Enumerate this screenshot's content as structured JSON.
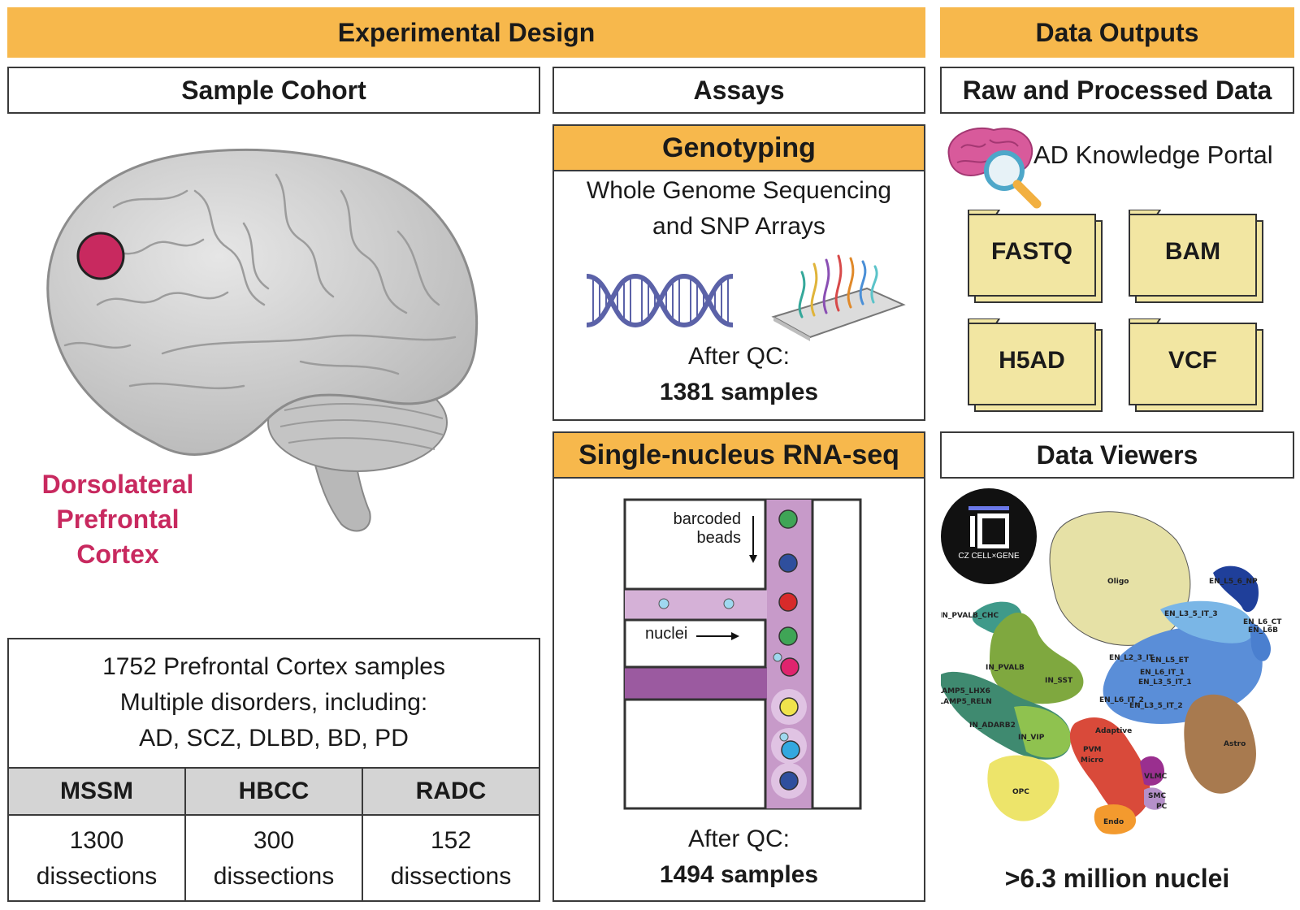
{
  "experimental_design": {
    "title": "Experimental Design",
    "sample_cohort": {
      "title": "Sample Cohort",
      "region_label": [
        "Dorsolateral",
        "Prefrontal",
        "Cortex"
      ],
      "summary_lines": [
        "1752 Prefrontal Cortex samples",
        "Multiple disorders, including:",
        "AD, SCZ, DLBD, BD, PD"
      ],
      "table": {
        "headers": [
          "MSSM",
          "HBCC",
          "RADC"
        ],
        "counts": [
          "1300",
          "300",
          "152"
        ],
        "unit": "dissections"
      }
    },
    "assays": {
      "title": "Assays",
      "genotyping": {
        "title": "Genotyping",
        "lines": [
          "Whole Genome Sequencing",
          "and SNP Arrays"
        ],
        "qc_label": "After QC:",
        "qc_value": "1381 samples"
      },
      "snrnaseq": {
        "title": "Single-nucleus RNA-seq",
        "beads_label": [
          "barcoded",
          "beads"
        ],
        "nuclei_label": "nuclei",
        "qc_label": "After QC:",
        "qc_value": "1494 samples"
      }
    }
  },
  "data_outputs": {
    "title": "Data Outputs",
    "raw_processed": {
      "title": "Raw and Processed Data",
      "portal_label": "AD Knowledge Portal",
      "formats": [
        "FASTQ",
        "BAM",
        "H5AD",
        "VCF"
      ]
    },
    "data_viewers": {
      "title": "Data Viewers",
      "logo_text": "CZ CELL×GENE",
      "cell_types": [
        "Oligo",
        "EN_L5_6_NP",
        "IN_PVALB_CHC",
        "IN_PVALB",
        "IN_SST",
        "IN_LAMP5_LHX6",
        "IN_LAMP5_RELN",
        "IN_ADARB2",
        "IN_VIP",
        "EN_L3_5_IT_3",
        "EN_L6_CT",
        "EN_L6B",
        "EN_L2_3_IT",
        "EN_L5_ET",
        "EN_L6_IT_1",
        "EN_L3_5_IT_1",
        "EN_L6_IT_2",
        "EN_L3_5_IT_2",
        "Adaptive",
        "PVM",
        "Micro",
        "Astro",
        "VLMC",
        "OPC",
        "SMC",
        "PC",
        "Endo"
      ],
      "summary": ">6.3 million nuclei"
    }
  },
  "colors": {
    "header_orange": "#f7b84c",
    "region_pink": "#c8295f",
    "folder_yellow": "#f2e6a2",
    "table_header_gray": "#d4d4d4"
  }
}
